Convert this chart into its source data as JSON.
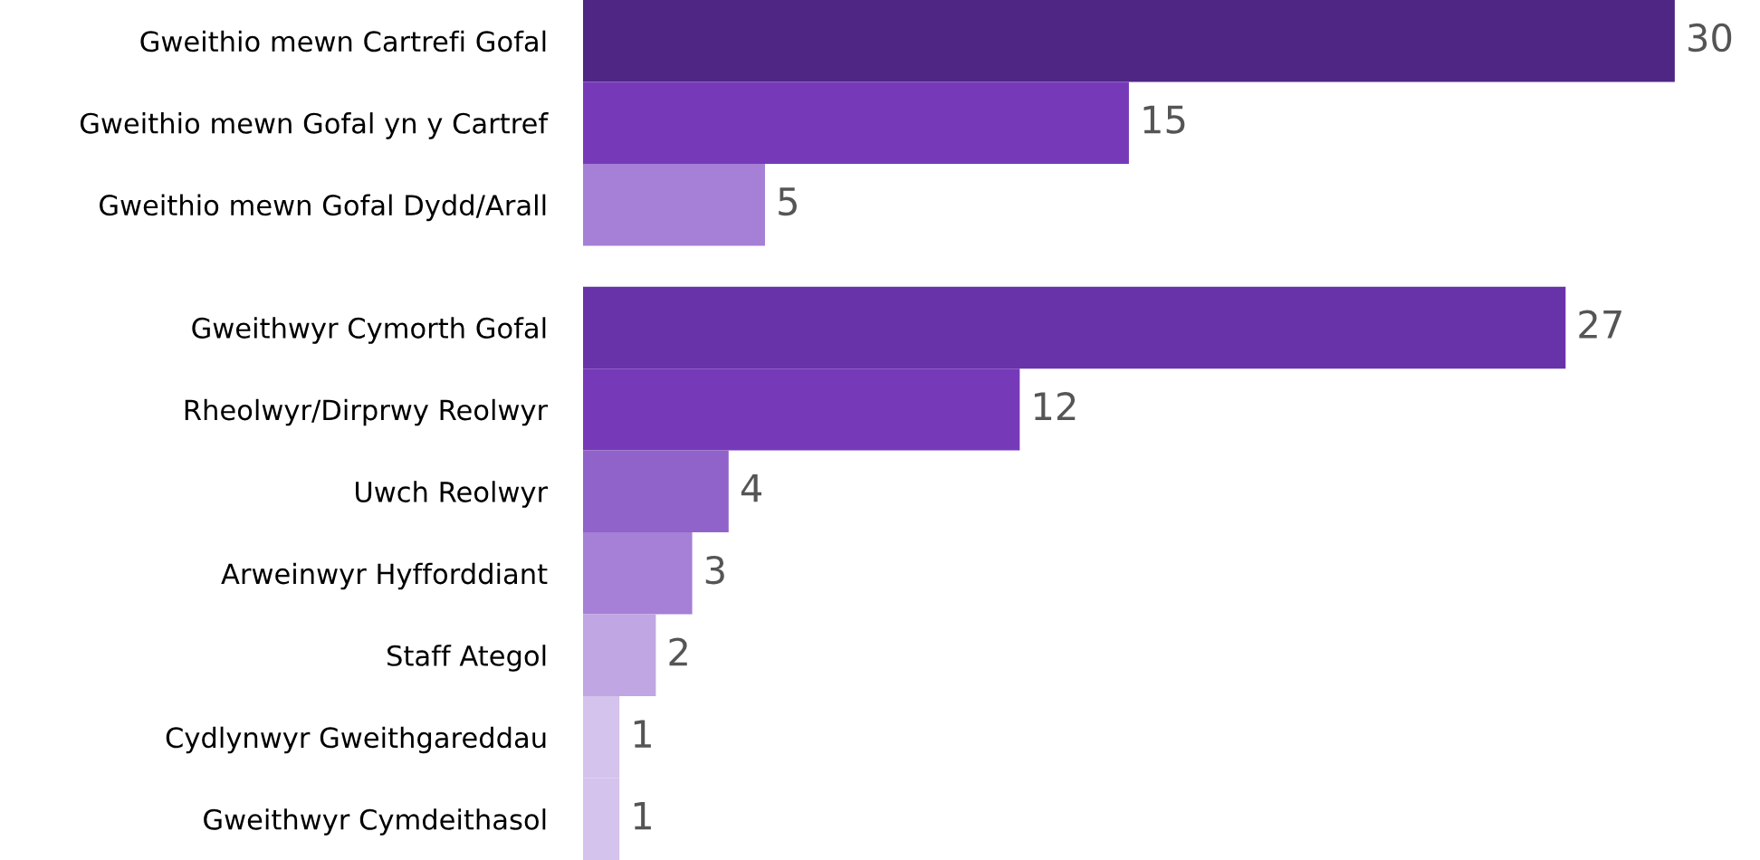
{
  "chart_data": {
    "type": "bar",
    "orientation": "horizontal",
    "data_labels": true,
    "categories": [
      "Gweithio mewn Cartrefi Gofal",
      "Gweithio mewn Gofal yn y Cartref",
      "Gweithio mewn Gofal Dydd/Arall",
      null,
      "Gweithwyr Cymorth Gofal",
      "Rheolwyr/Dirprwy Reolwyr",
      "Uwch Reolwyr",
      "Arweinwyr Hyfforddiant",
      "Staff Ategol",
      "Cydlynwyr Gweithgareddau",
      "Gweithwyr Cymdeithasol"
    ],
    "values": [
      30,
      15,
      5,
      null,
      27,
      12,
      4,
      3,
      2,
      1,
      1
    ],
    "colors": [
      "#4f2683",
      "#763ab9",
      "#a67fd6",
      null,
      "#6833a9",
      "#763ab9",
      "#8f63ca",
      "#a67fd6",
      "#c0a6e2",
      "#d4c3ec",
      "#d4c3ec"
    ],
    "grid": false
  }
}
